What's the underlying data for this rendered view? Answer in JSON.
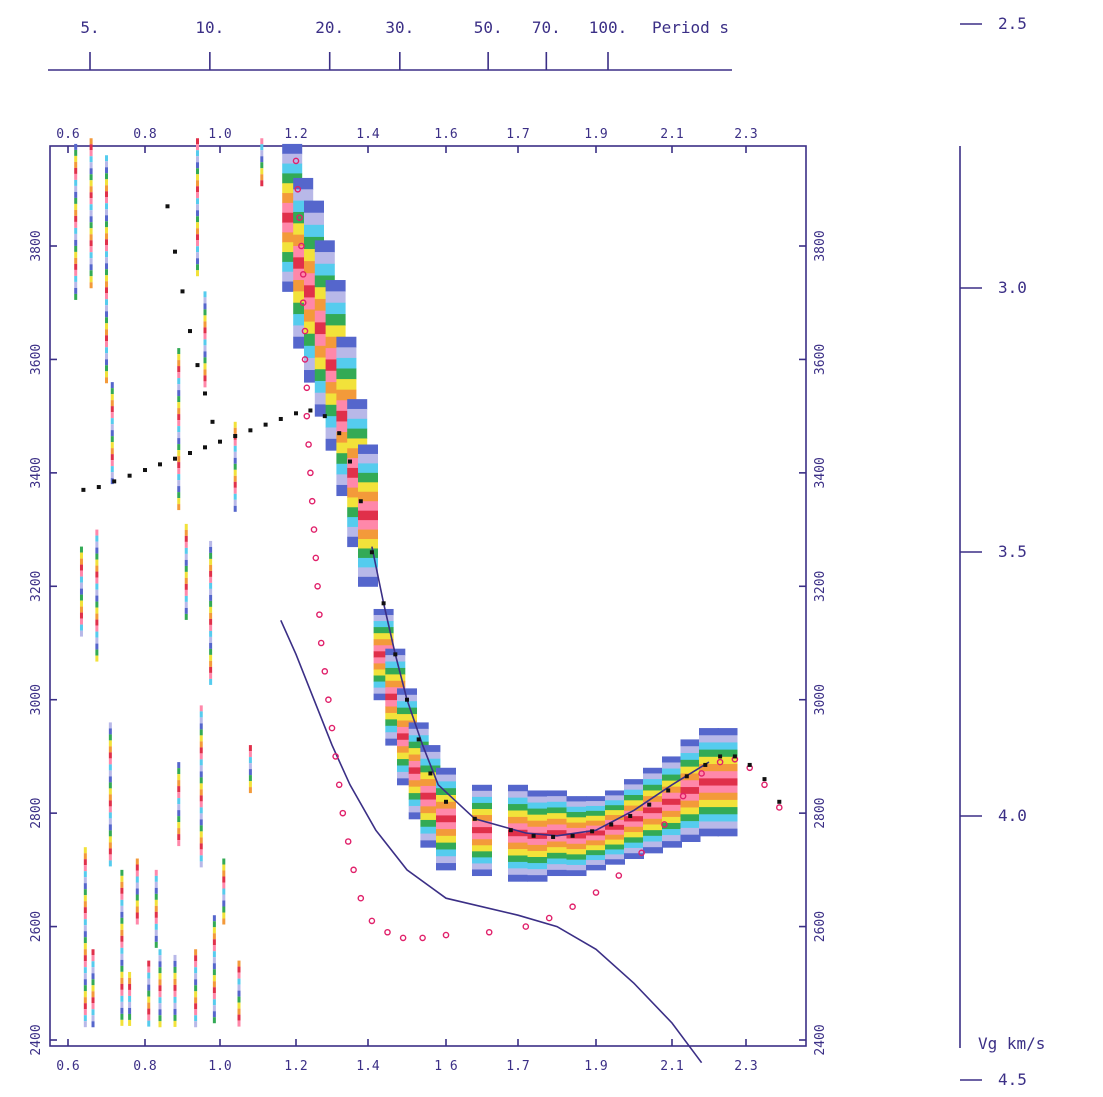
{
  "chart_data": {
    "type": "scatter",
    "colors": {
      "axis": "#3b2f86",
      "magenta_series": "#e0206a",
      "black_series": "#111111",
      "blue_curve": "#3b2f86",
      "spectrum_bands": [
        "#5566cc",
        "#33aa55",
        "#f2e23a",
        "#f39a3a",
        "#e0304a",
        "#ff88aa",
        "#55ccee",
        "#b8b8e8"
      ]
    },
    "period_axis": {
      "label": "Period s",
      "tick_labels": [
        "5.",
        "10.",
        "20.",
        "30.",
        "50.",
        "70.",
        "100."
      ],
      "values": [
        5,
        10,
        20,
        30,
        50,
        70,
        100
      ],
      "log_scale": true
    },
    "x_axis": {
      "ticks": [
        0.6,
        0.8,
        1.0,
        1.2,
        1.4,
        1.6,
        1.7,
        1.9,
        2.1,
        2.3
      ],
      "top_tick_labels": [
        "0.6",
        "0.8",
        "1.0",
        "1.2",
        "1.4",
        "1.6",
        "1.7",
        "1.9",
        "2.1",
        "2.3"
      ],
      "bottom_tick_labels": [
        "0.6",
        "0.8",
        "1.0",
        "1.2",
        "1.4",
        "1 6",
        "1.7",
        "1.9",
        "2.1",
        "2.3"
      ]
    },
    "y_axis": {
      "ticks": [
        2400,
        2600,
        2800,
        3000,
        3200,
        3400,
        3600,
        3800
      ],
      "tick_labels": [
        "2400",
        "2600",
        "2800",
        "3000",
        "3200",
        "3400",
        "3600",
        "3800"
      ],
      "ylim": [
        2350,
        4000
      ]
    },
    "vg_axis": {
      "label": "Vg km/s",
      "ticks": [
        2.5,
        3.0,
        3.5,
        4.0,
        4.5
      ],
      "tick_labels": [
        "2.5",
        "3.0",
        "3.5",
        "4.0",
        "4.5"
      ]
    },
    "series": [
      {
        "color": "magenta_series",
        "points": [
          [
            1.2,
            3950
          ],
          [
            1.205,
            3900
          ],
          [
            1.21,
            3850
          ],
          [
            1.215,
            3800
          ],
          [
            1.22,
            3750
          ],
          [
            1.22,
            3700
          ],
          [
            1.225,
            3650
          ],
          [
            1.225,
            3600
          ],
          [
            1.23,
            3550
          ],
          [
            1.23,
            3500
          ],
          [
            1.235,
            3450
          ],
          [
            1.24,
            3400
          ],
          [
            1.245,
            3350
          ],
          [
            1.25,
            3300
          ],
          [
            1.255,
            3250
          ],
          [
            1.26,
            3200
          ],
          [
            1.265,
            3150
          ],
          [
            1.27,
            3100
          ],
          [
            1.28,
            3050
          ],
          [
            1.29,
            3000
          ],
          [
            1.3,
            2950
          ],
          [
            1.31,
            2900
          ],
          [
            1.32,
            2850
          ],
          [
            1.33,
            2800
          ],
          [
            1.345,
            2750
          ],
          [
            1.36,
            2700
          ],
          [
            1.38,
            2650
          ],
          [
            1.41,
            2610
          ],
          [
            1.45,
            2590
          ],
          [
            1.49,
            2580
          ],
          [
            1.54,
            2580
          ],
          [
            1.6,
            2585
          ],
          [
            1.66,
            2590
          ],
          [
            1.72,
            2600
          ],
          [
            1.78,
            2615
          ],
          [
            1.84,
            2635
          ],
          [
            1.9,
            2660
          ],
          [
            1.96,
            2690
          ],
          [
            2.02,
            2730
          ],
          [
            2.08,
            2780
          ],
          [
            2.13,
            2830
          ],
          [
            2.18,
            2870
          ],
          [
            2.23,
            2890
          ],
          [
            2.27,
            2895
          ],
          [
            2.31,
            2880
          ],
          [
            2.35,
            2850
          ],
          [
            2.39,
            2810
          ]
        ]
      },
      {
        "color": "black_series",
        "points": [
          [
            0.64,
            3370
          ],
          [
            0.68,
            3375
          ],
          [
            0.72,
            3385
          ],
          [
            0.76,
            3395
          ],
          [
            0.8,
            3405
          ],
          [
            0.84,
            3415
          ],
          [
            0.88,
            3425
          ],
          [
            0.92,
            3435
          ],
          [
            0.96,
            3445
          ],
          [
            1.0,
            3455
          ],
          [
            1.04,
            3465
          ],
          [
            1.08,
            3475
          ],
          [
            1.12,
            3485
          ],
          [
            1.16,
            3495
          ],
          [
            1.2,
            3505
          ],
          [
            1.24,
            3510
          ],
          [
            1.28,
            3500
          ],
          [
            1.32,
            3470
          ],
          [
            1.35,
            3420
          ],
          [
            1.38,
            3350
          ],
          [
            1.41,
            3260
          ],
          [
            1.44,
            3170
          ],
          [
            1.47,
            3080
          ],
          [
            1.5,
            3000
          ],
          [
            1.53,
            2930
          ],
          [
            1.56,
            2870
          ],
          [
            1.6,
            2820
          ],
          [
            1.64,
            2790
          ],
          [
            1.69,
            2770
          ],
          [
            1.74,
            2760
          ],
          [
            1.79,
            2758
          ],
          [
            1.84,
            2760
          ],
          [
            1.89,
            2768
          ],
          [
            1.94,
            2780
          ],
          [
            1.99,
            2795
          ],
          [
            2.04,
            2815
          ],
          [
            2.09,
            2840
          ],
          [
            2.14,
            2865
          ],
          [
            2.19,
            2885
          ],
          [
            2.23,
            2900
          ],
          [
            2.27,
            2900
          ],
          [
            2.31,
            2885
          ],
          [
            2.35,
            2860
          ],
          [
            2.39,
            2820
          ],
          [
            0.86,
            3870
          ],
          [
            0.88,
            3790
          ],
          [
            0.9,
            3720
          ],
          [
            0.92,
            3650
          ],
          [
            0.94,
            3590
          ],
          [
            0.96,
            3540
          ],
          [
            0.98,
            3490
          ]
        ]
      }
    ],
    "curves": [
      {
        "color": "blue_curve",
        "points": [
          [
            1.16,
            3140
          ],
          [
            1.2,
            3080
          ],
          [
            1.25,
            3000
          ],
          [
            1.3,
            2920
          ],
          [
            1.35,
            2850
          ],
          [
            1.42,
            2770
          ],
          [
            1.5,
            2700
          ],
          [
            1.6,
            2650
          ],
          [
            1.7,
            2620
          ],
          [
            1.8,
            2600
          ],
          [
            1.9,
            2560
          ],
          [
            2.0,
            2500
          ],
          [
            2.1,
            2430
          ],
          [
            2.18,
            2360
          ]
        ]
      },
      {
        "color": "blue_curve",
        "points": [
          [
            1.41,
            3270
          ],
          [
            1.44,
            3170
          ],
          [
            1.47,
            3080
          ],
          [
            1.5,
            3000
          ],
          [
            1.54,
            2920
          ],
          [
            1.58,
            2850
          ],
          [
            1.64,
            2790
          ],
          [
            1.72,
            2765
          ],
          [
            1.8,
            2760
          ],
          [
            1.9,
            2770
          ],
          [
            2.0,
            2805
          ],
          [
            2.1,
            2850
          ],
          [
            2.2,
            2890
          ]
        ]
      }
    ],
    "energy_columns": [
      {
        "x": 1.19,
        "ymin": 3720,
        "ymax": 3980
      },
      {
        "x": 1.22,
        "ymin": 3620,
        "ymax": 3920
      },
      {
        "x": 1.25,
        "ymin": 3560,
        "ymax": 3880
      },
      {
        "x": 1.28,
        "ymin": 3500,
        "ymax": 3810
      },
      {
        "x": 1.31,
        "ymin": 3440,
        "ymax": 3740
      },
      {
        "x": 1.34,
        "ymin": 3360,
        "ymax": 3640
      },
      {
        "x": 1.37,
        "ymin": 3270,
        "ymax": 3530
      },
      {
        "x": 1.4,
        "ymin": 3200,
        "ymax": 3450
      },
      {
        "x": 1.44,
        "ymin": 3000,
        "ymax": 3160
      },
      {
        "x": 1.47,
        "ymin": 2920,
        "ymax": 3090
      },
      {
        "x": 1.5,
        "ymin": 2850,
        "ymax": 3020
      },
      {
        "x": 1.53,
        "ymin": 2790,
        "ymax": 2960
      },
      {
        "x": 1.56,
        "ymin": 2740,
        "ymax": 2920
      },
      {
        "x": 1.6,
        "ymin": 2700,
        "ymax": 2880
      },
      {
        "x": 1.65,
        "ymin": 2690,
        "ymax": 2850
      },
      {
        "x": 1.7,
        "ymin": 2680,
        "ymax": 2850
      },
      {
        "x": 1.75,
        "ymin": 2680,
        "ymax": 2840
      },
      {
        "x": 1.8,
        "ymin": 2690,
        "ymax": 2840
      },
      {
        "x": 1.85,
        "ymin": 2690,
        "ymax": 2830
      },
      {
        "x": 1.9,
        "ymin": 2700,
        "ymax": 2830
      },
      {
        "x": 1.95,
        "ymin": 2710,
        "ymax": 2840
      },
      {
        "x": 2.0,
        "ymin": 2720,
        "ymax": 2860
      },
      {
        "x": 2.05,
        "ymin": 2730,
        "ymax": 2880
      },
      {
        "x": 2.1,
        "ymin": 2740,
        "ymax": 2900
      },
      {
        "x": 2.15,
        "ymin": 2750,
        "ymax": 2930
      },
      {
        "x": 2.2,
        "ymin": 2760,
        "ymax": 2950
      },
      {
        "x": 2.25,
        "ymin": 2760,
        "ymax": 2950
      }
    ],
    "noise_strips": [
      {
        "x": 0.62,
        "ymin": 3700,
        "ymax": 3980
      },
      {
        "x": 0.635,
        "ymin": 3110,
        "ymax": 3270
      },
      {
        "x": 0.645,
        "ymin": 2420,
        "ymax": 2740
      },
      {
        "x": 0.66,
        "ymin": 3720,
        "ymax": 3990
      },
      {
        "x": 0.665,
        "ymin": 2420,
        "ymax": 2560
      },
      {
        "x": 0.675,
        "ymin": 3060,
        "ymax": 3300
      },
      {
        "x": 0.7,
        "ymin": 3550,
        "ymax": 3960
      },
      {
        "x": 0.71,
        "ymin": 2700,
        "ymax": 2960
      },
      {
        "x": 0.715,
        "ymin": 3380,
        "ymax": 3560
      },
      {
        "x": 0.74,
        "ymin": 2420,
        "ymax": 2700
      },
      {
        "x": 0.76,
        "ymin": 2420,
        "ymax": 2520
      },
      {
        "x": 0.78,
        "ymin": 2600,
        "ymax": 2720
      },
      {
        "x": 0.81,
        "ymin": 2420,
        "ymax": 2540
      },
      {
        "x": 0.83,
        "ymin": 2560,
        "ymax": 2700
      },
      {
        "x": 0.84,
        "ymin": 2420,
        "ymax": 2560
      },
      {
        "x": 0.88,
        "ymin": 2420,
        "ymax": 2550
      },
      {
        "x": 0.89,
        "ymin": 2740,
        "ymax": 2890
      },
      {
        "x": 0.89,
        "ymin": 3330,
        "ymax": 3620
      },
      {
        "x": 0.91,
        "ymin": 3140,
        "ymax": 3310
      },
      {
        "x": 0.935,
        "ymin": 2420,
        "ymax": 2560
      },
      {
        "x": 0.94,
        "ymin": 3740,
        "ymax": 3990
      },
      {
        "x": 0.95,
        "ymin": 2700,
        "ymax": 2990
      },
      {
        "x": 0.96,
        "ymin": 3550,
        "ymax": 3720
      },
      {
        "x": 0.975,
        "ymin": 3020,
        "ymax": 3280
      },
      {
        "x": 0.985,
        "ymin": 2420,
        "ymax": 2620
      },
      {
        "x": 1.01,
        "ymin": 2600,
        "ymax": 2720
      },
      {
        "x": 1.04,
        "ymin": 3330,
        "ymax": 3490
      },
      {
        "x": 1.05,
        "ymin": 2420,
        "ymax": 2540
      },
      {
        "x": 1.08,
        "ymin": 2830,
        "ymax": 2920
      },
      {
        "x": 1.11,
        "ymin": 3900,
        "ymax": 3990
      }
    ]
  }
}
